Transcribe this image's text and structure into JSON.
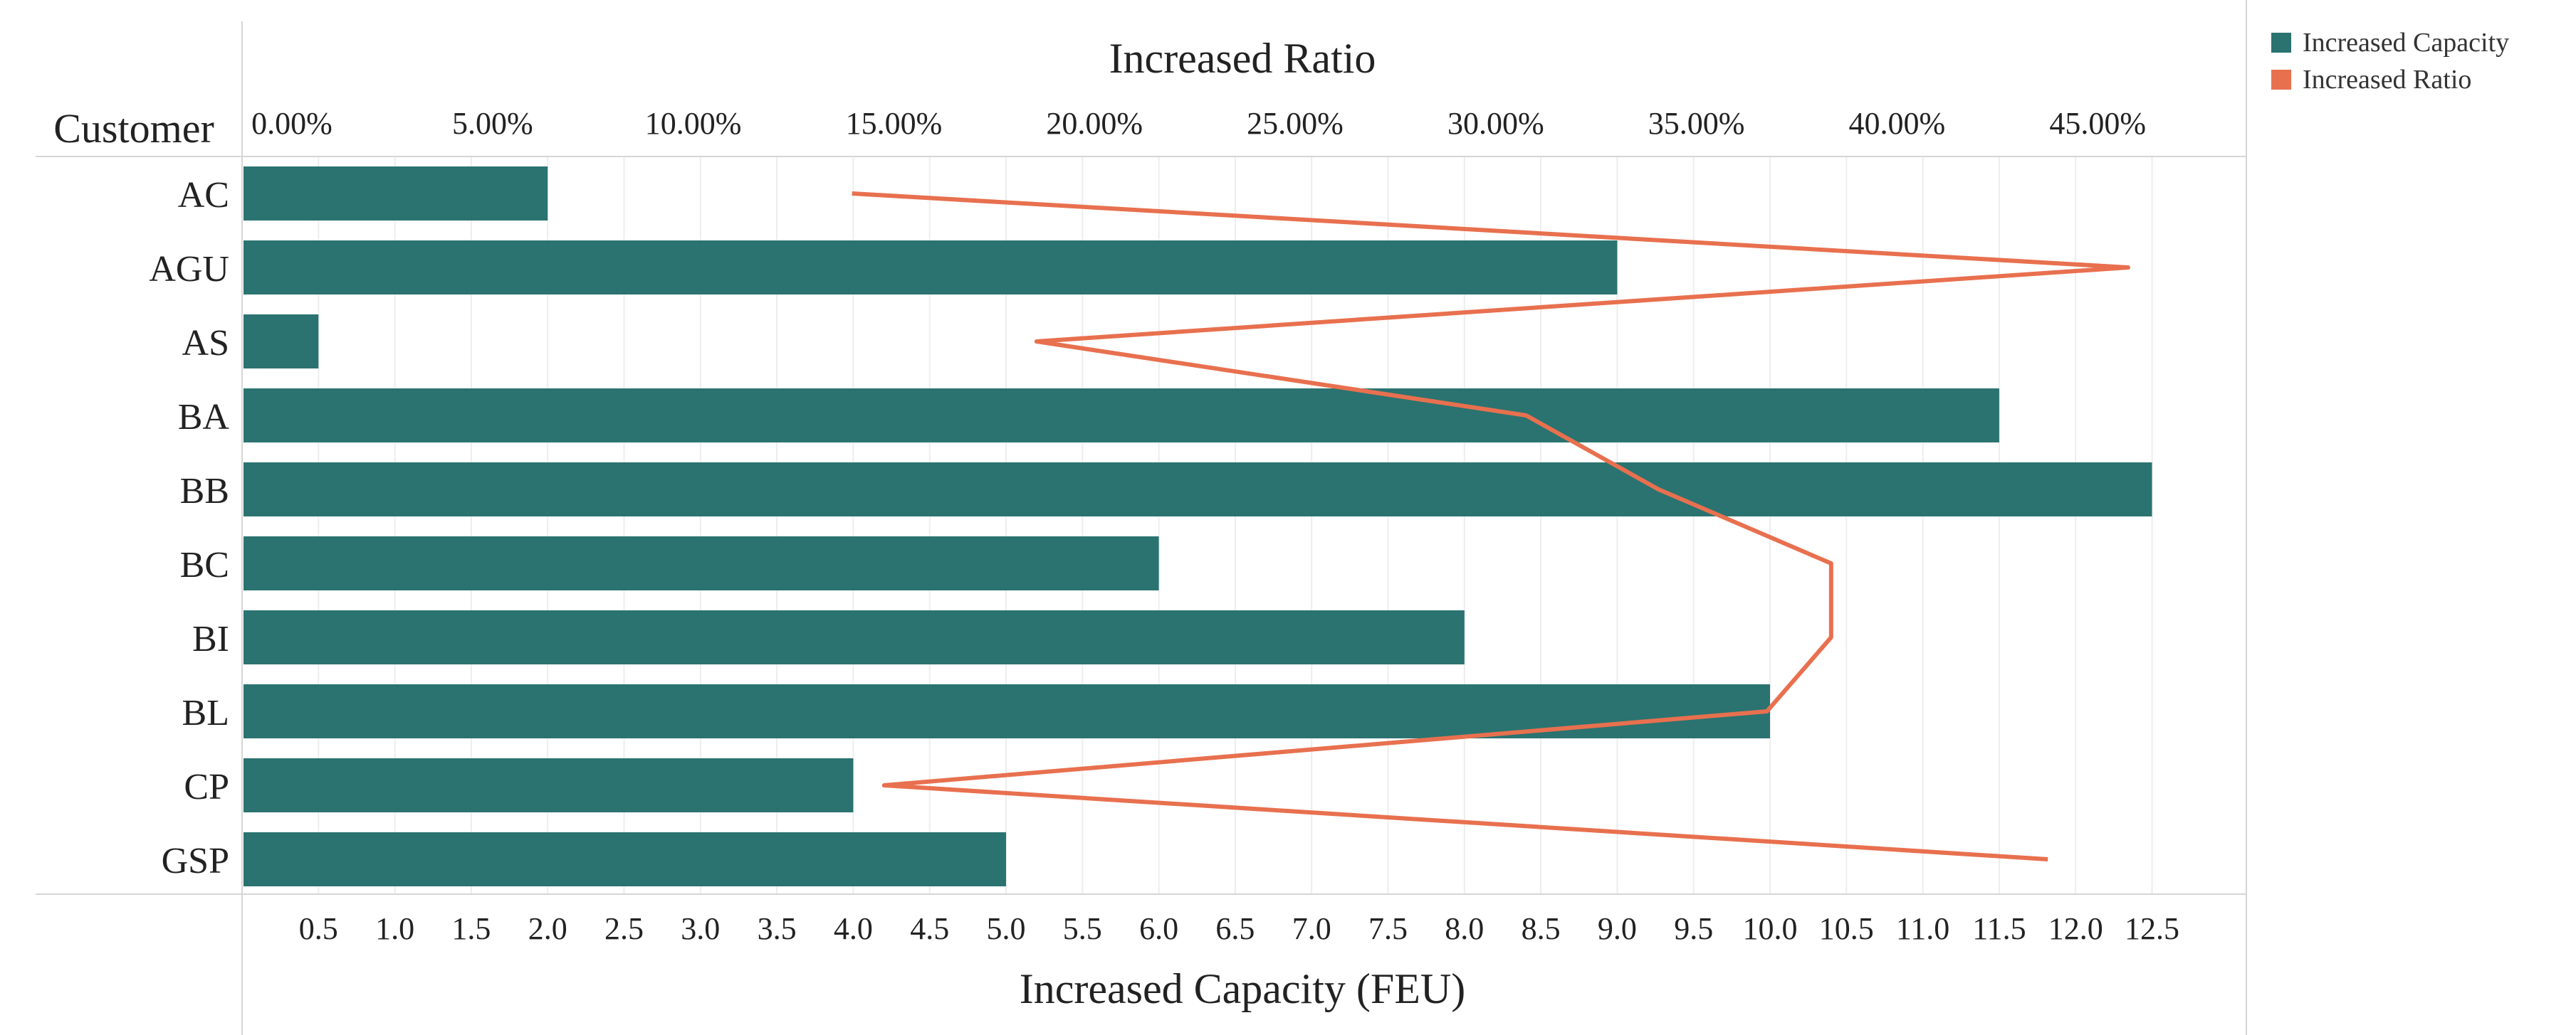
{
  "chart_data": {
    "type": "bar",
    "orientation": "horizontal",
    "row_header": "Customer",
    "categories": [
      "AC",
      "AGU",
      "AS",
      "BA",
      "BB",
      "BC",
      "BI",
      "BL",
      "CP",
      "GSP"
    ],
    "series": [
      {
        "name": "Increased Capacity",
        "type": "bar",
        "axis": "bottom",
        "values": [
          2.0,
          9.0,
          0.5,
          11.5,
          12.5,
          6.0,
          8.0,
          10.0,
          4.0,
          5.0
        ]
      },
      {
        "name": "Increased Ratio",
        "type": "line",
        "axis": "top",
        "values": [
          15.2,
          47.0,
          19.8,
          32.0,
          35.3,
          39.6,
          39.6,
          38.0,
          16.0,
          45.0
        ]
      }
    ],
    "bottom_axis": {
      "label": "Increased Capacity (FEU)",
      "range": [
        0,
        13.0
      ],
      "ticks": [
        0.5,
        1.0,
        1.5,
        2.0,
        2.5,
        3.0,
        3.5,
        4.0,
        4.5,
        5.0,
        5.5,
        6.0,
        6.5,
        7.0,
        7.5,
        8.0,
        8.5,
        9.0,
        9.5,
        10.0,
        10.5,
        11.0,
        11.5,
        12.0,
        12.5
      ],
      "tick_labels": [
        "0.5",
        "1.0",
        "1.5",
        "2.0",
        "2.5",
        "3.0",
        "3.5",
        "4.0",
        "4.5",
        "5.0",
        "5.5",
        "6.0",
        "6.5",
        "7.0",
        "7.5",
        "8.0",
        "8.5",
        "9.0",
        "9.5",
        "10.0",
        "10.5",
        "11.0",
        "11.5",
        "12.0",
        "12.5"
      ]
    },
    "top_axis": {
      "label": "Increased Ratio",
      "range": [
        0,
        49.5
      ],
      "ticks": [
        0,
        5,
        10,
        15,
        20,
        25,
        30,
        35,
        40,
        45
      ],
      "tick_labels": [
        "0.00%",
        "5.00%",
        "10.00%",
        "15.00%",
        "20.00%",
        "25.00%",
        "30.00%",
        "35.00%",
        "40.00%",
        "45.00%"
      ]
    },
    "grid": true,
    "legend_position": "top-right",
    "colors": {
      "bar": "#2a7370",
      "line": "#e8704f",
      "grid": "#ededed",
      "axis": "#d6d6d6"
    }
  }
}
